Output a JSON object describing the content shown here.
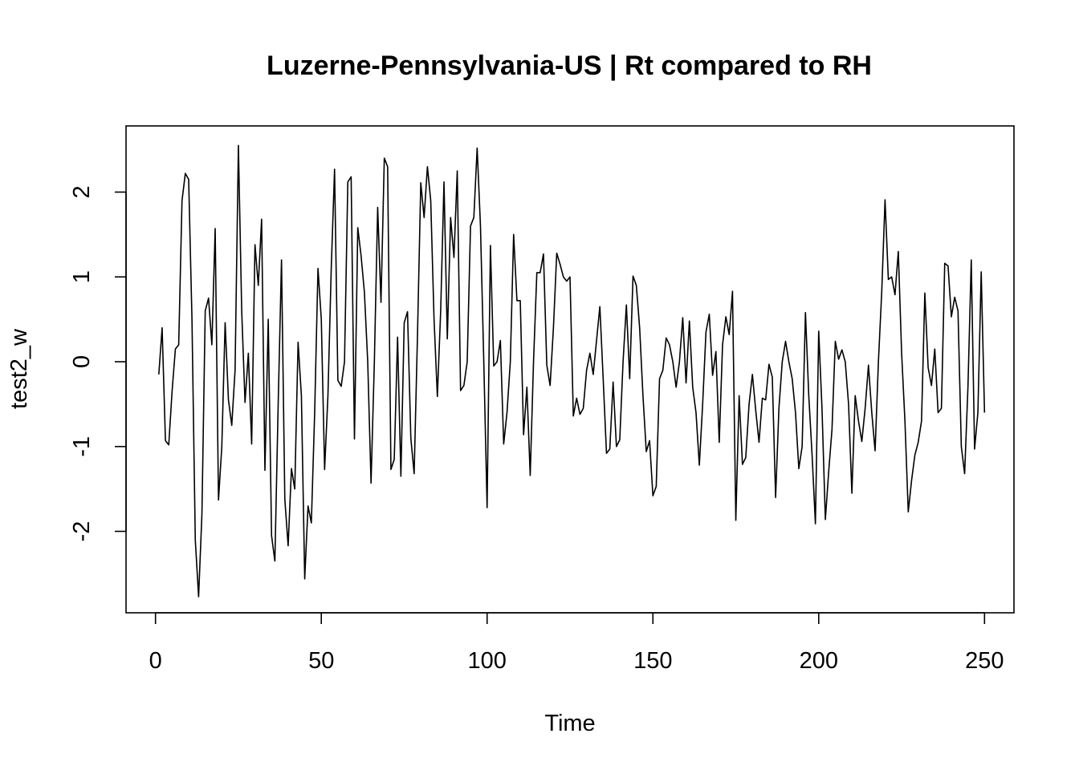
{
  "chart_data": {
    "type": "line",
    "title": "Luzerne-Pennsylvania-US | Rt compared to RH",
    "xlabel": "Time",
    "ylabel": "test2_w",
    "xlim": [
      -8.88,
      258.88
    ],
    "ylim": [
      -2.96,
      2.78
    ],
    "x_ticks": [
      0,
      50,
      100,
      150,
      200,
      250
    ],
    "y_ticks": [
      -2,
      -1,
      0,
      1,
      2
    ],
    "grid": false,
    "legend": "none",
    "line_color": "#000000",
    "series": [
      {
        "values": [
          -0.15,
          0.4,
          -0.93,
          -0.98,
          -0.35,
          0.15,
          0.2,
          1.9,
          2.22,
          2.15,
          0.5,
          -2.1,
          -2.77,
          -1.8,
          0.6,
          0.75,
          0.2,
          1.57,
          -1.63,
          -1.0,
          0.46,
          -0.45,
          -0.75,
          -0.1,
          2.55,
          0.6,
          -0.48,
          0.1,
          -0.97,
          1.38,
          0.9,
          1.68,
          -1.28,
          0.5,
          -2.05,
          -2.35,
          -0.5,
          1.2,
          -1.62,
          -2.17,
          -1.26,
          -1.5,
          0.23,
          -0.4,
          -2.56,
          -1.7,
          -1.9,
          -0.6,
          1.1,
          0.5,
          -1.27,
          -0.4,
          1.1,
          2.27,
          -0.22,
          -0.29,
          0.0,
          2.12,
          2.18,
          -0.91,
          1.58,
          1.25,
          0.82,
          0.0,
          -1.43,
          0.0,
          1.82,
          0.7,
          2.4,
          2.3,
          -1.27,
          -1.15,
          0.29,
          -1.35,
          0.46,
          0.59,
          -0.9,
          -1.32,
          0.3,
          2.11,
          1.7,
          2.3,
          1.9,
          0.5,
          -0.41,
          0.6,
          2.12,
          0.27,
          1.7,
          1.23,
          2.25,
          -0.34,
          -0.28,
          0.0,
          1.6,
          1.7,
          2.52,
          1.6,
          0.0,
          -1.72,
          1.37,
          -0.05,
          0.0,
          0.25,
          -0.97,
          -0.6,
          0.0,
          1.5,
          0.72,
          0.72,
          -0.86,
          -0.3,
          -1.34,
          0.0,
          1.05,
          1.05,
          1.27,
          -0.04,
          -0.28,
          0.4,
          1.28,
          1.15,
          1.0,
          0.95,
          1.0,
          -0.64,
          -0.43,
          -0.62,
          -0.55,
          -0.1,
          0.1,
          -0.15,
          0.25,
          0.65,
          -0.2,
          -1.08,
          -1.03,
          -0.24,
          -1.0,
          -0.92,
          0.0,
          0.67,
          -0.2,
          1.01,
          0.9,
          0.4,
          -0.4,
          -1.06,
          -0.93,
          -1.58,
          -1.47,
          -0.2,
          -0.1,
          0.28,
          0.2,
          0.0,
          -0.3,
          0.0,
          0.52,
          -0.25,
          0.48,
          -0.3,
          -0.6,
          -1.22,
          -0.5,
          0.35,
          0.56,
          -0.16,
          0.12,
          -0.95,
          0.2,
          0.53,
          0.32,
          0.83,
          -1.87,
          -0.4,
          -1.21,
          -1.13,
          -0.5,
          -0.15,
          -0.57,
          -0.95,
          -0.43,
          -0.45,
          -0.03,
          -0.18,
          -1.6,
          -0.55,
          0.0,
          0.24,
          0.0,
          -0.2,
          -0.6,
          -1.26,
          -1.0,
          0.58,
          -0.4,
          -1.1,
          -1.91,
          0.36,
          -0.56,
          -1.86,
          -1.3,
          -0.8,
          0.24,
          0.03,
          0.14,
          0.0,
          -0.5,
          -1.55,
          -0.4,
          -0.7,
          -0.94,
          -0.55,
          -0.04,
          -0.6,
          -1.05,
          0.0,
          0.82,
          1.91,
          0.97,
          1.0,
          0.79,
          1.3,
          0.1,
          -0.7,
          -1.77,
          -1.4,
          -1.1,
          -0.95,
          -0.7,
          0.81,
          -0.07,
          -0.28,
          0.15,
          -0.6,
          -0.55,
          1.16,
          1.13,
          0.53,
          0.76,
          0.6,
          -1.0,
          -1.32,
          -0.3,
          1.2,
          -1.03,
          -0.6,
          1.06,
          -0.6
        ]
      }
    ]
  }
}
